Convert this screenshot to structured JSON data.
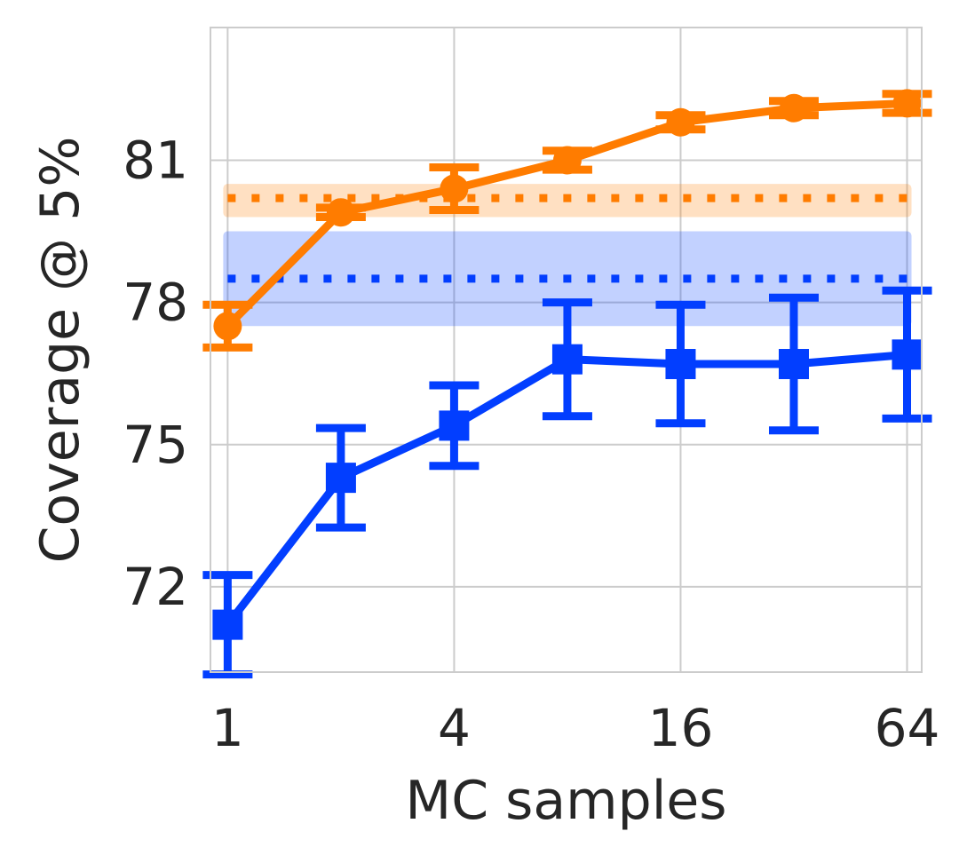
{
  "chart_data": {
    "type": "line",
    "title": "",
    "xlabel": "MC samples",
    "ylabel": "Coverage @ 5%",
    "x_scale": "log2",
    "x": [
      1,
      2,
      4,
      8,
      16,
      32,
      64
    ],
    "xticks": [
      1,
      4,
      16,
      64
    ],
    "xtick_labels": [
      "1",
      "4",
      "16",
      "64"
    ],
    "xlim": [
      0.9,
      70
    ],
    "yticks": [
      72,
      75,
      78,
      81
    ],
    "ytick_labels": [
      "72",
      "75",
      "78",
      "81"
    ],
    "ylim": [
      70.2,
      83.8
    ],
    "grid": true,
    "series": [
      {
        "name": "orange-series",
        "color": "#ff7c00",
        "marker": "circle",
        "values": [
          77.5,
          79.9,
          80.4,
          81.0,
          81.8,
          82.1,
          82.2
        ],
        "err": [
          0.45,
          0.1,
          0.45,
          0.2,
          0.15,
          0.15,
          0.2
        ]
      },
      {
        "name": "blue-series",
        "color": "#023eff",
        "marker": "square",
        "values": [
          71.2,
          74.3,
          75.4,
          76.8,
          76.7,
          76.7,
          76.9
        ],
        "err": [
          1.05,
          1.05,
          0.85,
          1.2,
          1.25,
          1.4,
          1.35
        ]
      }
    ],
    "reference_bands": [
      {
        "name": "orange-reference",
        "color": "#ff7c00",
        "value": 80.2,
        "low": 79.8,
        "high": 80.5,
        "x_start": 1,
        "x_end": 64
      },
      {
        "name": "blue-reference",
        "color": "#023eff",
        "value": 78.5,
        "low": 77.5,
        "high": 79.5,
        "x_start": 1,
        "x_end": 64
      }
    ]
  }
}
